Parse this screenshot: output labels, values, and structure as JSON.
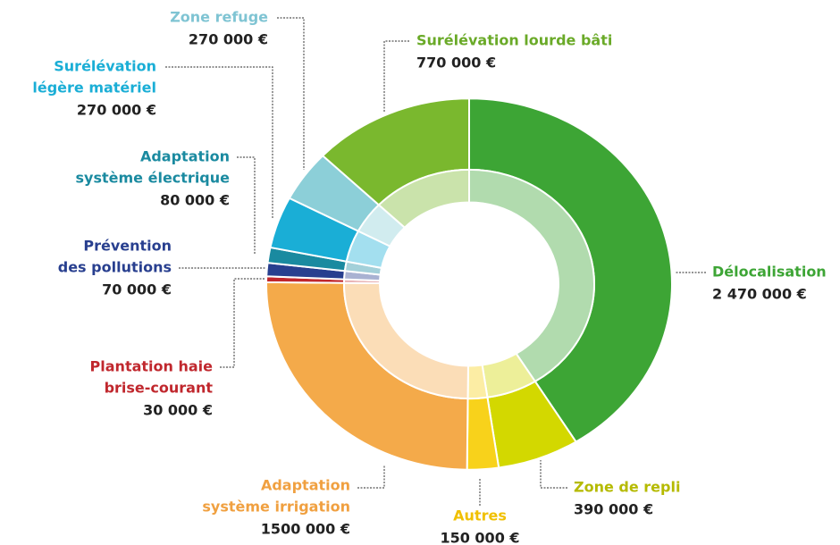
{
  "chart_data": {
    "type": "donut",
    "categories": [
      "Délocalisation",
      "Zone de repli",
      "Autres",
      [
        "Adaptation",
        "système irrigation"
      ],
      [
        "Plantation haie",
        "brise-courant"
      ],
      [
        "Prévention",
        "des pollutions"
      ],
      [
        "Adaptation",
        "système électrique"
      ],
      [
        "Surélévation",
        "légère matériel"
      ],
      "Zone refuge",
      "Surélévation lourde bâti"
    ],
    "values": [
      2470000,
      390000,
      150000,
      1500000,
      30000,
      70000,
      80000,
      270000,
      270000,
      770000
    ],
    "value_labels": [
      "2 470 000 €",
      "390 000 €",
      "150 000 €",
      "1500 000 €",
      "30 000 €",
      "70 000 €",
      "80 000 €",
      "270 000 €",
      "270 000 €",
      "770 000 €"
    ],
    "colors": [
      "#3da535",
      "#d3d800",
      "#f8d21b",
      "#f4aa4a",
      "#c0272d",
      "#283f8f",
      "#1a8aa0",
      "#1aaed6",
      "#8ccfd8",
      "#7ab82e"
    ]
  }
}
